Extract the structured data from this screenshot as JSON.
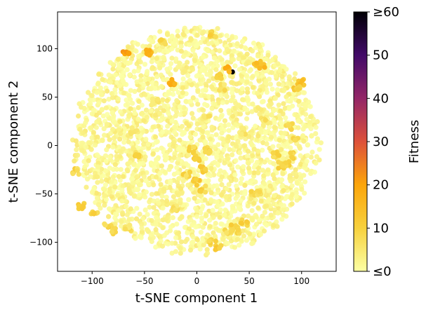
{
  "chart_data": {
    "type": "scatter",
    "title": "",
    "xlabel": "t-SNE component 1",
    "ylabel": "t-SNE component 2",
    "xlim": [
      -133,
      133
    ],
    "ylim": [
      -130,
      138
    ],
    "xticks": [
      -100,
      -50,
      0,
      50,
      100
    ],
    "yticks": [
      -100,
      -50,
      0,
      50,
      100
    ],
    "grid": false,
    "colorbar": {
      "label": "Fitness",
      "colormap": "inferno_r",
      "range": [
        0,
        60
      ],
      "ticks": [
        0,
        10,
        20,
        30,
        40,
        50,
        60
      ],
      "tick_labels": [
        "≤0",
        "10",
        "20",
        "30",
        "40",
        "50",
        "≥60"
      ]
    },
    "colormap_stops": [
      "#fcffa4",
      "#f7d13d",
      "#fca50a",
      "#dd513a",
      "#932667",
      "#420a68",
      "#000004"
    ],
    "cloud": {
      "center": [
        0,
        4
      ],
      "radius": 120,
      "background_fitness_range": [
        0,
        5
      ]
    },
    "highlighted_points": [
      {
        "x": 34,
        "y": 76,
        "fitness": 62
      },
      {
        "x": -67,
        "y": 98,
        "fitness": 22
      },
      {
        "x": -47,
        "y": 96,
        "fitness": 20
      },
      {
        "x": -24,
        "y": 65,
        "fitness": 20
      },
      {
        "x": 29,
        "y": 78,
        "fitness": 20
      },
      {
        "x": 58,
        "y": 84,
        "fitness": 17
      },
      {
        "x": 63,
        "y": 82,
        "fitness": 17
      },
      {
        "x": 99,
        "y": 65,
        "fitness": 16
      },
      {
        "x": 95,
        "y": 58,
        "fitness": 13
      },
      {
        "x": 22,
        "y": 72,
        "fitness": 13
      },
      {
        "x": 15,
        "y": 115,
        "fitness": 12
      },
      {
        "x": -32,
        "y": 108,
        "fitness": 11
      },
      {
        "x": -110,
        "y": -62,
        "fitness": 13
      },
      {
        "x": -98,
        "y": -68,
        "fitness": 12
      },
      {
        "x": -115,
        "y": -27,
        "fitness": 11
      },
      {
        "x": -80,
        "y": -88,
        "fitness": 12
      },
      {
        "x": -85,
        "y": -82,
        "fitness": 11
      },
      {
        "x": -57,
        "y": -10,
        "fitness": 10
      },
      {
        "x": -5,
        "y": -5,
        "fitness": 12
      },
      {
        "x": 0,
        "y": -12,
        "fitness": 14
      },
      {
        "x": 5,
        "y": -25,
        "fitness": 13
      },
      {
        "x": 0,
        "y": -38,
        "fitness": 14
      },
      {
        "x": 5,
        "y": -45,
        "fitness": 12
      },
      {
        "x": -10,
        "y": -30,
        "fitness": 11
      },
      {
        "x": 10,
        "y": -5,
        "fitness": 11
      },
      {
        "x": 75,
        "y": -10,
        "fitness": 11
      },
      {
        "x": 80,
        "y": -20,
        "fitness": 13
      },
      {
        "x": 85,
        "y": -18,
        "fitness": 12
      },
      {
        "x": 90,
        "y": -10,
        "fitness": 11
      },
      {
        "x": 88,
        "y": 20,
        "fitness": 10
      },
      {
        "x": 95,
        "y": 5,
        "fitness": 10
      },
      {
        "x": 35,
        "y": -85,
        "fitness": 12
      },
      {
        "x": 40,
        "y": -88,
        "fitness": 11
      },
      {
        "x": 45,
        "y": -80,
        "fitness": 12
      },
      {
        "x": 30,
        "y": -90,
        "fitness": 10
      },
      {
        "x": 20,
        "y": -105,
        "fitness": 13
      },
      {
        "x": 15,
        "y": -100,
        "fitness": 12
      },
      {
        "x": 55,
        "y": -50,
        "fitness": 10
      },
      {
        "x": 60,
        "y": -48,
        "fitness": 9
      },
      {
        "x": 25,
        "y": 60,
        "fitness": 9
      },
      {
        "x": -65,
        "y": -85,
        "fitness": 9
      },
      {
        "x": 10,
        "y": 28,
        "fitness": 8
      },
      {
        "x": 45,
        "y": 15,
        "fitness": 8
      },
      {
        "x": -40,
        "y": 45,
        "fitness": 7
      },
      {
        "x": -60,
        "y": 15,
        "fitness": 7
      },
      {
        "x": 65,
        "y": 25,
        "fitness": 8
      },
      {
        "x": -20,
        "y": -65,
        "fitness": 8
      }
    ]
  }
}
